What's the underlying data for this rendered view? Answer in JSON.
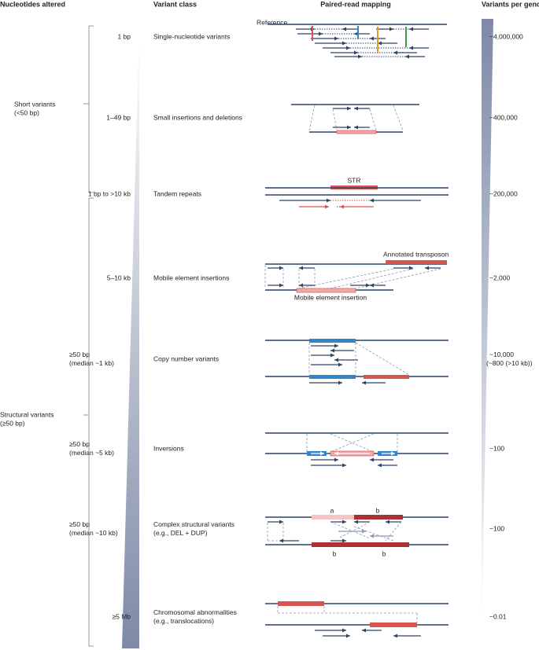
{
  "headers": [
    "Nucleotides altered",
    "Variant class",
    "Paired-read mapping",
    "Variants per genome"
  ],
  "groups": [
    {
      "label": "Short variants",
      "sub": "(<50 bp)"
    },
    {
      "label": "Structural variants",
      "sub": "(≥50 bp)"
    }
  ],
  "rows": [
    {
      "size": [
        "1 bp"
      ],
      "class": [
        "Single-nucleotide variants"
      ],
      "count": [
        "~4,000,000"
      ]
    },
    {
      "size": [
        "1–49 bp"
      ],
      "class": [
        "Small insertions and deletions"
      ],
      "count": [
        "~400,000"
      ]
    },
    {
      "size": [
        "1 bp to >10 kb"
      ],
      "class": [
        "Tandem repeats"
      ],
      "count": [
        "~200,000"
      ]
    },
    {
      "size": [
        "5–10 kb"
      ],
      "class": [
        "Mobile element insertions"
      ],
      "count": [
        "~2,000"
      ]
    },
    {
      "size": [
        "≥50 bp",
        "(median ~1 kb)"
      ],
      "class": [
        "Copy number variants"
      ],
      "count": [
        "~10,000",
        "(~800 (>10 kb))"
      ]
    },
    {
      "size": [
        "≥50 bp",
        "(median ~5 kb)"
      ],
      "class": [
        "Inversions"
      ],
      "count": [
        "~100"
      ]
    },
    {
      "size": [
        "≥50 bp",
        "(median ~10 kb)"
      ],
      "class": [
        "Complex structural variants",
        "(e.g., DEL + DUP)"
      ],
      "count": [
        "~100"
      ]
    },
    {
      "size": [
        "≥5 Mb"
      ],
      "class": [
        "Chromosomal abnormalities",
        "(e.g., translocations)"
      ],
      "count": [
        "~0.01"
      ]
    }
  ],
  "labels": {
    "reference": "Reference",
    "str": "STR",
    "transposon": "Annotated transposon",
    "mei": "Mobile element insertion",
    "complex": [
      "a",
      "b",
      "b",
      "b"
    ]
  }
}
